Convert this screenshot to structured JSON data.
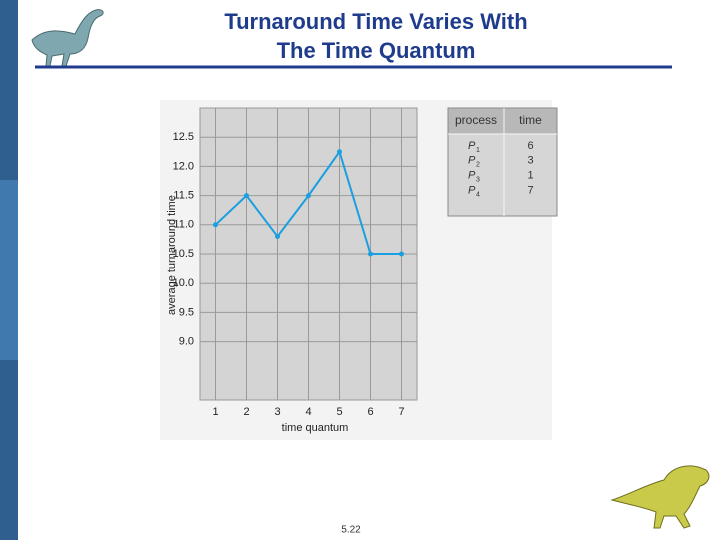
{
  "slide": {
    "title_lines": [
      "Turnaround Time Varies With",
      "The Time Quantum"
    ],
    "page_number": "5.22"
  },
  "chart_data": {
    "type": "line",
    "x": [
      1,
      2,
      3,
      4,
      5,
      6,
      7
    ],
    "series": [
      {
        "name": "average turnaround time",
        "color": "#1a9fe0",
        "values": [
          11.0,
          11.5,
          10.8,
          11.5,
          12.25,
          10.5,
          10.5
        ]
      }
    ],
    "xlabel": "time quantum",
    "ylabel": "average turnaround time",
    "xlim": [
      0.5,
      7.5
    ],
    "xticks": [
      1,
      2,
      3,
      4,
      5,
      6,
      7
    ],
    "ylim": [
      8,
      13
    ],
    "yticks": [
      {
        "value": 9,
        "label": "9.0"
      },
      9.5,
      {
        "value": 10,
        "label": "10.0"
      },
      10.5,
      {
        "value": 11,
        "label": "11.0"
      },
      11.5,
      {
        "value": 12,
        "label": "12.0"
      },
      12.5
    ],
    "grid": true
  },
  "table": {
    "header": [
      "process",
      "time"
    ],
    "rows": [
      {
        "process": "P",
        "sub": "1",
        "time": "6"
      },
      {
        "process": "P",
        "sub": "2",
        "time": "3"
      },
      {
        "process": "P",
        "sub": "3",
        "time": "1"
      },
      {
        "process": "P",
        "sub": "4",
        "time": "7"
      }
    ]
  }
}
